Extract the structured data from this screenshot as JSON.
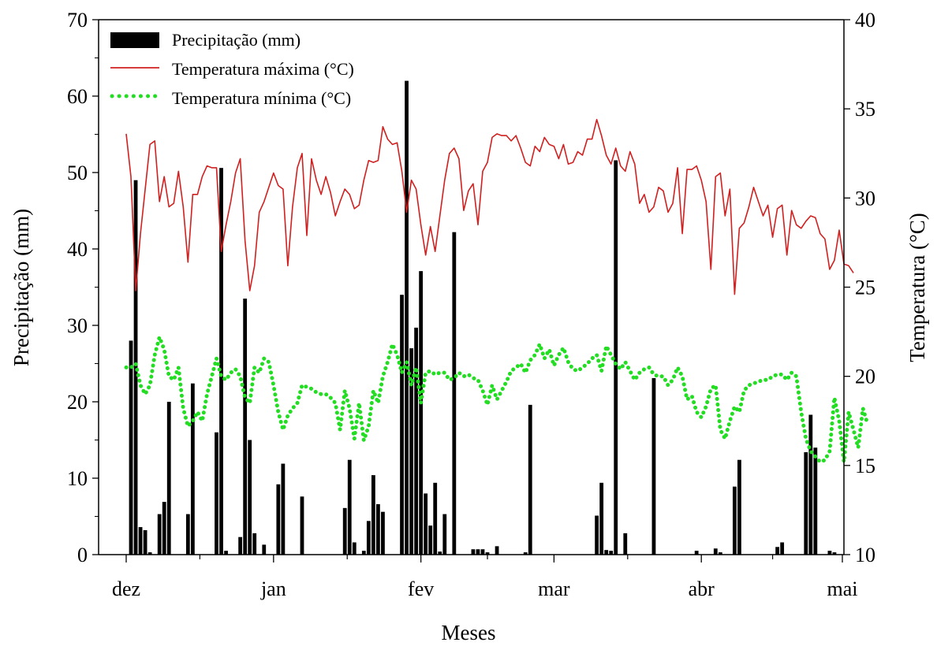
{
  "chart_data": {
    "type": "bar",
    "xlabel": "Meses",
    "ylabel_left": "Precipitação (mm)",
    "ylabel_right": "Temperatura (°C)",
    "ylim_left": [
      0,
      70
    ],
    "ylim_right": [
      10,
      40
    ],
    "xlim_days": [
      0,
      150
    ],
    "x_axis": {
      "ticks": [
        {
          "day": 0,
          "label": "dez"
        },
        {
          "day": 31,
          "label": "jan"
        },
        {
          "day": 62,
          "label": "fev"
        },
        {
          "day": 90,
          "label": "mar"
        },
        {
          "day": 121,
          "label": "abr"
        },
        {
          "day": 151,
          "label": "mai"
        }
      ]
    },
    "left_ticks": [
      0,
      10,
      20,
      30,
      40,
      50,
      60,
      70
    ],
    "right_ticks": [
      10,
      15,
      20,
      25,
      30,
      35,
      40
    ],
    "legend": {
      "position": "top-left",
      "entries": [
        "Precipitação (mm)",
        "Temperatura máxima (°C)",
        "Temperatura mínima (°C)"
      ]
    },
    "colors": {
      "precipitation": "#000000",
      "tmax": "#d02020",
      "tmin": "#22dd22"
    },
    "series": [
      {
        "name": "Precipitação (mm)",
        "type": "bar",
        "x": [
          1,
          2,
          3,
          4,
          5,
          7,
          8,
          9,
          13,
          14,
          19,
          20,
          21,
          24,
          25,
          26,
          27,
          29,
          32,
          33,
          37,
          46,
          47,
          48,
          50,
          51,
          52,
          53,
          54,
          58,
          59,
          60,
          61,
          62,
          63,
          64,
          65,
          66,
          67,
          69,
          73,
          74,
          75,
          76,
          78,
          84,
          85,
          99,
          100,
          101,
          102,
          103,
          105,
          111,
          120,
          124,
          125,
          128,
          129,
          137,
          138,
          143,
          144,
          145,
          148,
          149
        ],
        "values": [
          28,
          49,
          3.6,
          3.2,
          0.3,
          5.3,
          6.9,
          20,
          5.3,
          22.4,
          16,
          50.6,
          0.5,
          2.3,
          33.5,
          15,
          2.8,
          1.3,
          9.2,
          11.9,
          7.6,
          6.1,
          12.4,
          1.6,
          0.5,
          4.4,
          10.4,
          6.6,
          5.6,
          34,
          62,
          27,
          29.7,
          37.1,
          8,
          3.8,
          9.4,
          0.4,
          5.3,
          42.2,
          0.7,
          0.7,
          0.7,
          0.3,
          1.1,
          0.3,
          19.6,
          5.1,
          9.4,
          0.6,
          0.5,
          51.6,
          2.8,
          23.1,
          0.5,
          0.8,
          0.3,
          8.9,
          12.4,
          1,
          1.6,
          13.4,
          18.3,
          14,
          0.5,
          0.3
        ]
      },
      {
        "name": "Temperatura máxima (°C)",
        "type": "line",
        "x_start": 0,
        "x_step": 1,
        "values": [
          33.6,
          31.2,
          24.8,
          28.0,
          30.5,
          33.0,
          33.2,
          29.8,
          31.2,
          29.5,
          29.7,
          31.5,
          29.5,
          26.4,
          30.2,
          30.2,
          31.2,
          31.8,
          31.7,
          31.7,
          27.0,
          28.5,
          29.8,
          31.4,
          32.2,
          27.6,
          24.8,
          26.2,
          29.2,
          29.8,
          30.6,
          31.4,
          30.7,
          30.5,
          26.2,
          29.5,
          31.7,
          32.5,
          27.9,
          32.2,
          31.0,
          30.2,
          31.2,
          30.3,
          29.0,
          29.8,
          30.5,
          30.2,
          29.4,
          29.6,
          31.0,
          32.1,
          32.0,
          32.1,
          34.0,
          33.3,
          33.0,
          33.1,
          31.5,
          29.2,
          31.0,
          30.5,
          28.5,
          26.8,
          28.4,
          27.0,
          29.0,
          31.0,
          32.5,
          32.8,
          32.2,
          29.3,
          30.4,
          30.8,
          28.5,
          31.5,
          32.0,
          33.4,
          33.6,
          33.5,
          33.5,
          33.2,
          33.5,
          32.8,
          32.0,
          31.8,
          32.9,
          32.6,
          33.4,
          33.0,
          32.9,
          32.2,
          33.0,
          31.9,
          32.0,
          32.6,
          32.4,
          33.3,
          33.3,
          34.4,
          33.5,
          32.4,
          31.9,
          32.8,
          31.8,
          31.5,
          32.6,
          31.9,
          29.7,
          30.2,
          29.2,
          29.5,
          30.6,
          30.4,
          29.2,
          29.7,
          31.7,
          28.0,
          31.6,
          31.6,
          31.8,
          31.0,
          29.8,
          26.0,
          31.2,
          31.4,
          29.0,
          30.5,
          24.6,
          28.3,
          28.6,
          29.5,
          30.6,
          29.8,
          29.0,
          29.6,
          27.8,
          29.4,
          29.6,
          26.8,
          29.3,
          28.5,
          28.3,
          28.7,
          29.0,
          28.9,
          28.0,
          27.7,
          26.0,
          26.5,
          28.2,
          26.3,
          26.2,
          25.8
        ]
      },
      {
        "name": "Temperatura mínima (°C)",
        "type": "line",
        "style": "dotted",
        "x_start": 0,
        "x_step": 1,
        "values": [
          20.5,
          20.5,
          20.7,
          19.5,
          19.0,
          19.5,
          21.2,
          22.2,
          21.5,
          20.0,
          19.8,
          20.5,
          18.2,
          17.2,
          17.5,
          18.0,
          17.5,
          19.0,
          20.0,
          21.0,
          20.0,
          19.8,
          20.2,
          20.4,
          20.0,
          18.8,
          18.5,
          20.5,
          20.2,
          21.0,
          20.8,
          19.5,
          18.0,
          17.0,
          17.8,
          18.2,
          18.5,
          19.5,
          19.4,
          19.3,
          19.1,
          19.0,
          19.0,
          18.8,
          18.5,
          17.0,
          19.2,
          18.2,
          16.5,
          18.5,
          16.4,
          17.2,
          19.2,
          18.5,
          20.0,
          20.8,
          21.8,
          21.2,
          20.2,
          20.8,
          19.5,
          20.5,
          18.5,
          20.2,
          20.3,
          20.1,
          20.2,
          20.2,
          19.8,
          19.9,
          20.2,
          20.0,
          20.1,
          19.9,
          19.8,
          19.2,
          18.4,
          19.5,
          18.7,
          19.2,
          19.7,
          20.3,
          20.5,
          20.7,
          20.2,
          20.9,
          21.2,
          21.8,
          21.0,
          21.5,
          20.6,
          21.2,
          21.6,
          20.8,
          20.4,
          20.3,
          20.5,
          20.7,
          21.0,
          21.2,
          20.3,
          21.7,
          21.2,
          20.7,
          20.4,
          20.8,
          20.3,
          19.8,
          20.2,
          20.4,
          20.5,
          20.1,
          20.0,
          20.0,
          19.5,
          19.8,
          20.5,
          20.0,
          18.7,
          18.9,
          18.0,
          17.7,
          18.3,
          19.3,
          19.5,
          17.0,
          16.5,
          17.5,
          18.3,
          18.0,
          19.2,
          19.5,
          19.6,
          19.7,
          19.8,
          19.8,
          20.0,
          20.1,
          20.1,
          19.8,
          20.2,
          20.0,
          18.0,
          16.5,
          15.8,
          15.5,
          15.2,
          15.3,
          15.8,
          18.8,
          17.5,
          15.2,
          18.0,
          17.0,
          16.0,
          18.2,
          17.3
        ]
      }
    ]
  }
}
